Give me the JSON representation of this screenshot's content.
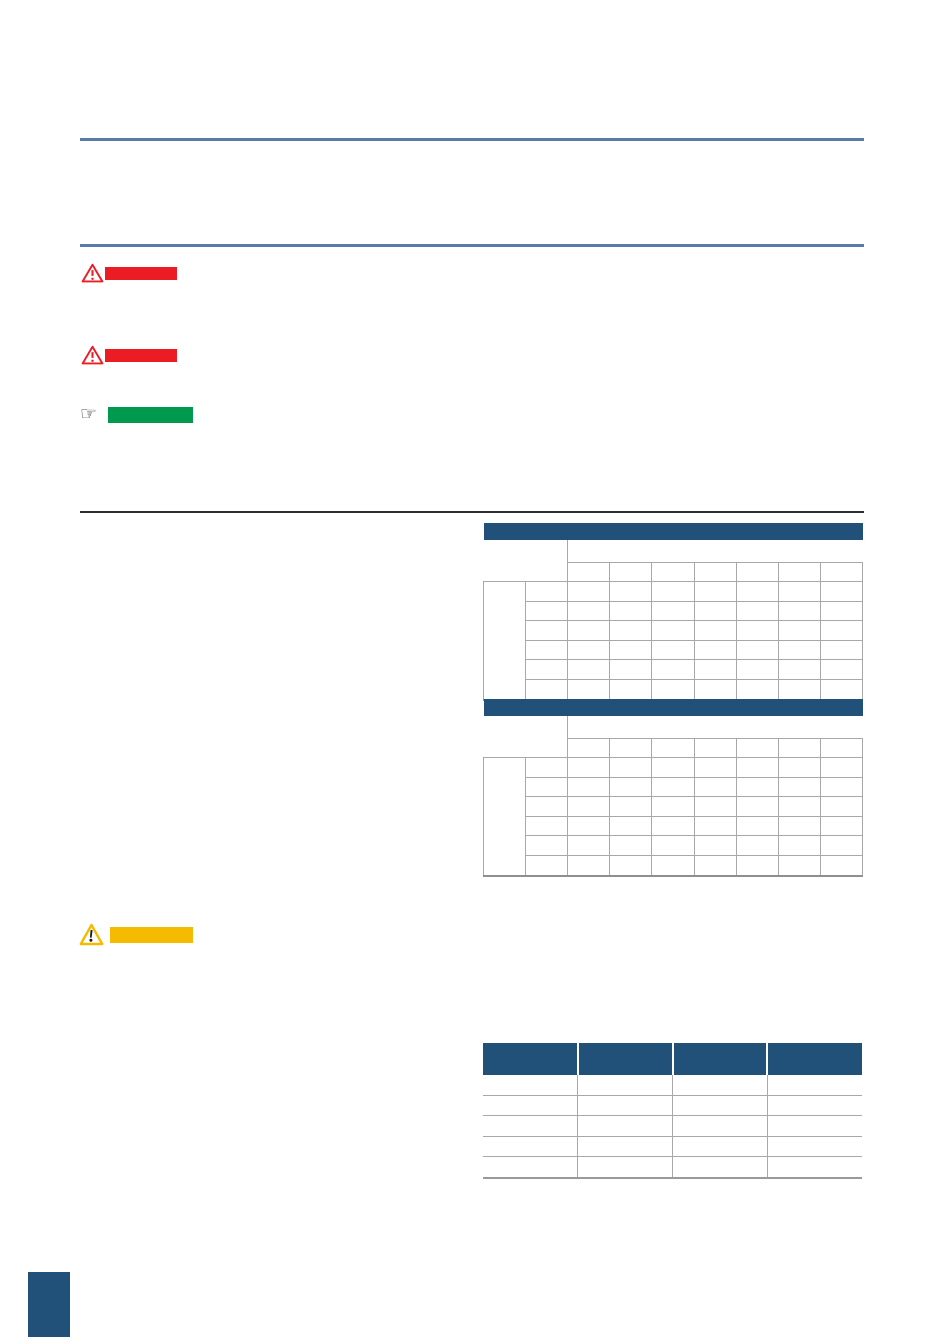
{
  "page": {
    "background": "#ffffff"
  },
  "colors": {
    "navy": "#215079",
    "steel_blue": "#5a7ba7",
    "rule_dark": "#2e2e2e",
    "grid_gray": "#a8a8a8",
    "grid_dark_gray": "#8f8f8f",
    "danger_red": "#ec1c24",
    "note_green": "#009a4e",
    "caution_yellow": "#f5bb00",
    "icon_dark": "#1c1c1c"
  },
  "title_block": {
    "top_rule": true,
    "bottom_rule": true,
    "visible_text": ""
  },
  "badges": {
    "warning_1": {
      "icon": "warning-triangle-icon",
      "text": ""
    },
    "warning_2": {
      "icon": "warning-triangle-icon",
      "text": ""
    },
    "note": {
      "icon": "pointing-hand-icon",
      "hand_glyph": "☞",
      "text": ""
    },
    "caution": {
      "icon": "caution-triangle-icon",
      "text": ""
    }
  },
  "spec_tables": {
    "count": 2,
    "structure": {
      "title_bar_text": "",
      "column_group_header_text": "",
      "value_cols": 7,
      "data_rows": 6,
      "row_group_label_text": "",
      "cell_text": ""
    }
  },
  "parts_table": {
    "columns": 4,
    "rows": 5,
    "header_text": "",
    "cell_text": ""
  },
  "footer": {
    "page_number_tab_text": ""
  }
}
